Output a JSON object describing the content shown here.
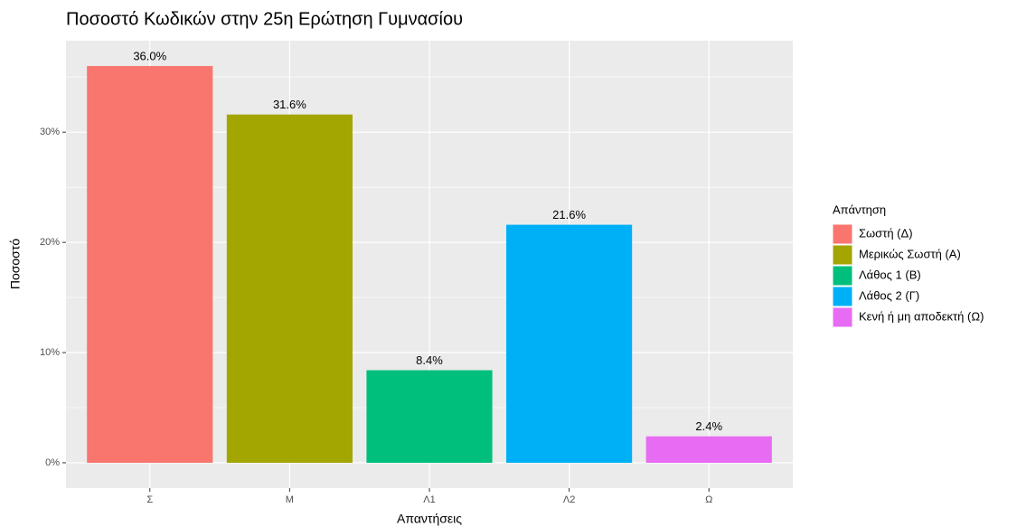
{
  "chart_data": {
    "type": "bar",
    "title": "Ποσοστό Κωδικών στην 25η Ερώτηση Γυμνασίου",
    "x_label": "Απαντήσεις",
    "y_label": "Ποσοστό",
    "categories": [
      "Σ",
      "Μ",
      "Λ1",
      "Λ2",
      "Ω"
    ],
    "values": [
      36.0,
      31.6,
      8.4,
      21.6,
      2.4
    ],
    "value_labels": [
      "36.0%",
      "31.6%",
      "8.4%",
      "21.6%",
      "2.4%"
    ],
    "colors": [
      "#f8766d",
      "#a3a500",
      "#00bf7d",
      "#00b0f6",
      "#e76bf3"
    ],
    "legend_title": "Απάντηση",
    "legend_labels": [
      "Σωστή (Δ)",
      "Μερικώς Σωστή (Α)",
      "Λάθος 1 (Β)",
      "Λάθος 2 (Γ)",
      "Κενή ή μη αποδεκτή (Ω)"
    ],
    "ylim": [
      -2.3,
      38.3
    ],
    "yticks": [
      {
        "value": 0,
        "label": "0%"
      },
      {
        "value": 10,
        "label": "10%"
      },
      {
        "value": 20,
        "label": "20%"
      },
      {
        "value": 30,
        "label": "30%"
      }
    ],
    "y_minor_ticks": [
      5,
      15,
      25,
      35
    ],
    "grid": true,
    "legend_position": "right"
  }
}
